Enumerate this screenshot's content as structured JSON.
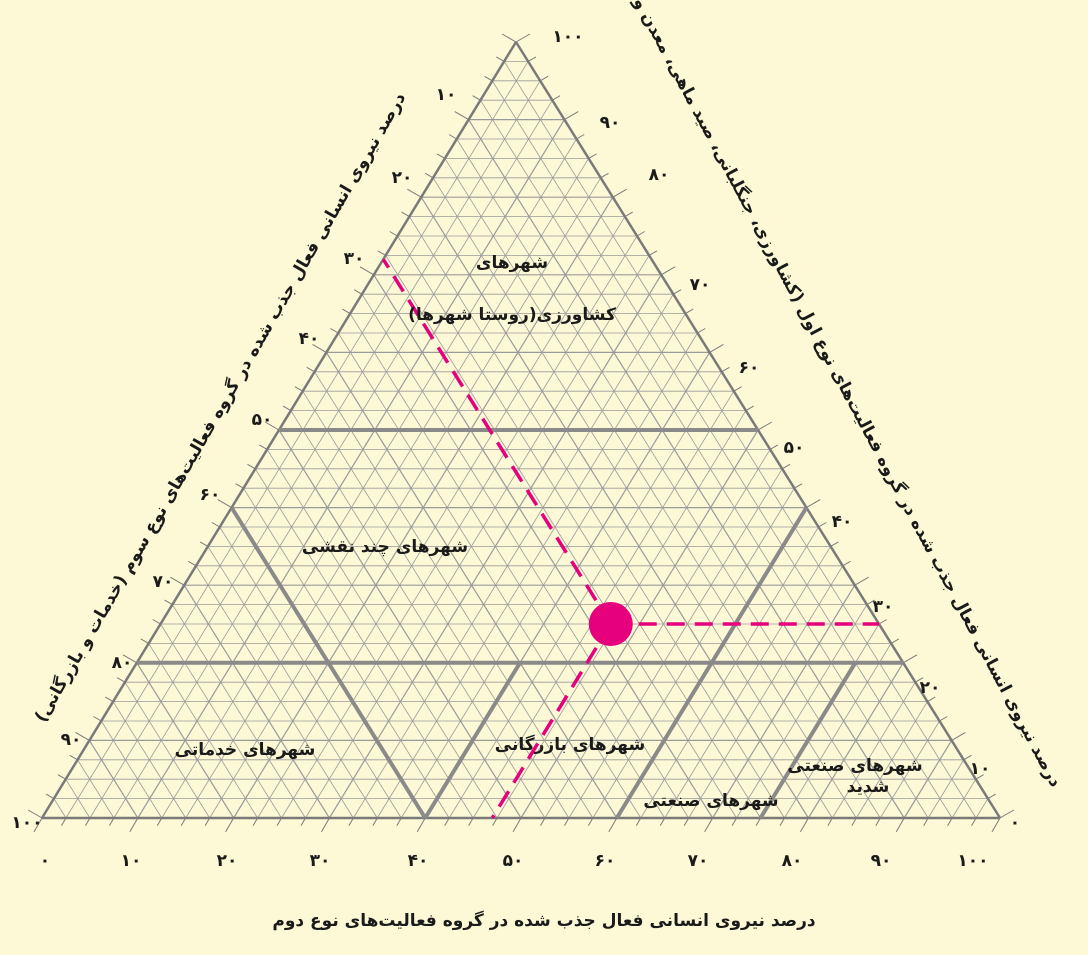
{
  "colors": {
    "background": "#fdf9d6",
    "grid": "#9a9a9a",
    "frame": "#7a7a7a",
    "boundary": "#8a8a8a",
    "marker": "#e6007e"
  },
  "left_axis": {
    "title": "درصد نیروی انسانی فعال جذب شده در گروه فعالیت‌های نوع سوم (خدمات و بازرگانی)",
    "ticks": [
      "۱۰",
      "۲۰",
      "۳۰",
      "۴۰",
      "۵۰",
      "۶۰",
      "۷۰",
      "۸۰",
      "۹۰",
      "۱۰۰"
    ]
  },
  "right_axis": {
    "title": "درصد نیروی انسانی فعال جذب شده در گروه فعالیت‌های نوع اول (کشاورزی، جنگلبانی، صید ماهی، معدن و ...)",
    "ticks": [
      "۰",
      "۱۰",
      "۲۰",
      "۳۰",
      "۴۰",
      "۵۰",
      "۶۰",
      "۷۰",
      "۸۰",
      "۹۰",
      "۱۰۰"
    ]
  },
  "bottom_axis": {
    "title": "درصد نیروی انسانی فعال جذب شده در گروه فعالیت‌های نوع دوم",
    "ticks": [
      "۰",
      "۱۰",
      "۲۰",
      "۳۰",
      "۴۰",
      "۵۰",
      "۶۰",
      "۷۰",
      "۸۰",
      "۹۰",
      "۱۰۰"
    ]
  },
  "zones": {
    "agricultural_line1": "شهرهای",
    "agricultural_line2": "کشاورزی(روستا شهرها)",
    "multifunctional": "شهرهای چند نقشی",
    "service": "شهرهای خدماتی",
    "commercial": "شهرهای بازرگانی",
    "industrial": "شهرهای صنعتی",
    "heavy_industrial_line1": "شهرهای صنعتی",
    "heavy_industrial_line2": "شدید"
  },
  "example_point": {
    "primary_pct": 25,
    "secondary_pct": 47,
    "tertiary_pct": 28
  }
}
